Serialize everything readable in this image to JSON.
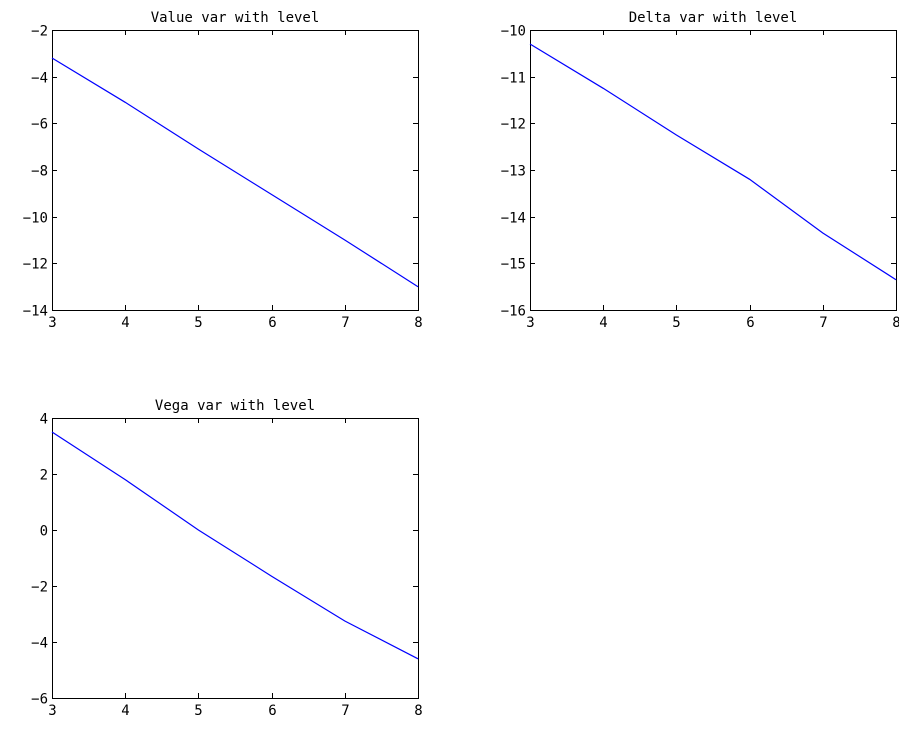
{
  "chart_data": [
    {
      "type": "line",
      "title": "Value var with level",
      "xlabel": "",
      "ylabel": "",
      "xlim": [
        3,
        8
      ],
      "ylim": [
        -14,
        -2
      ],
      "xticks": [
        3,
        4,
        5,
        6,
        7,
        8
      ],
      "yticks": [
        -14,
        -12,
        -10,
        -8,
        -6,
        -4,
        -2
      ],
      "grid": false,
      "series": [
        {
          "color": "#0000ff",
          "x": [
            3,
            4,
            5,
            6,
            7,
            8
          ],
          "y": [
            -3.2,
            -5.1,
            -7.1,
            -9.05,
            -11.0,
            -13.0
          ]
        }
      ]
    },
    {
      "type": "line",
      "title": "Delta var with level",
      "xlabel": "",
      "ylabel": "",
      "xlim": [
        3,
        8
      ],
      "ylim": [
        -16,
        -10
      ],
      "xticks": [
        3,
        4,
        5,
        6,
        7,
        8
      ],
      "yticks": [
        -16,
        -15,
        -14,
        -13,
        -12,
        -11,
        -10
      ],
      "grid": false,
      "series": [
        {
          "color": "#0000ff",
          "x": [
            3,
            4,
            5,
            6,
            7,
            8
          ],
          "y": [
            -10.3,
            -11.25,
            -12.25,
            -13.2,
            -14.35,
            -15.35
          ]
        }
      ]
    },
    {
      "type": "line",
      "title": "Vega var with level",
      "xlabel": "",
      "ylabel": "",
      "xlim": [
        3,
        8
      ],
      "ylim": [
        -6,
        4
      ],
      "xticks": [
        3,
        4,
        5,
        6,
        7,
        8
      ],
      "yticks": [
        -6,
        -4,
        -2,
        0,
        2,
        4
      ],
      "grid": false,
      "series": [
        {
          "color": "#0000ff",
          "x": [
            3,
            4,
            5,
            6,
            7,
            8
          ],
          "y": [
            3.5,
            1.8,
            0.0,
            -1.65,
            -3.25,
            -4.6
          ]
        }
      ]
    }
  ]
}
